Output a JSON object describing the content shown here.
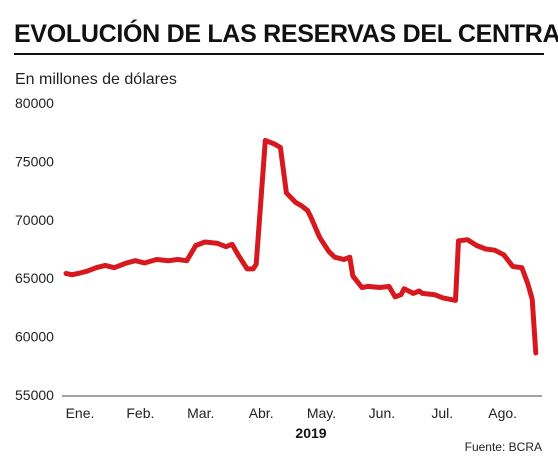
{
  "chart_data": {
    "type": "line",
    "title": "EVOLUCIÓN DE LAS RESERVAS DEL CENTRAL",
    "subtitle": "En millones de dólares",
    "xlabel": "2019",
    "ylabel": "",
    "source": "Fuente: BCRA",
    "ylim": [
      55000,
      80000
    ],
    "yticks": [
      "80000",
      "75000",
      "70000",
      "65000",
      "60000",
      "55000"
    ],
    "xlim": [
      0,
      7.85
    ],
    "x_categories": [
      "Ene.",
      "Feb.",
      "Mar.",
      "Abr.",
      "May.",
      "Jun.",
      "Jul.",
      "Ago."
    ],
    "grid": false,
    "legend": "none",
    "series": [
      {
        "color": "#d7191f",
        "x": [
          0.0,
          0.1,
          0.2,
          0.35,
          0.5,
          0.65,
          0.8,
          1.0,
          1.15,
          1.3,
          1.5,
          1.7,
          1.85,
          2.0,
          2.15,
          2.3,
          2.5,
          2.65,
          2.75,
          2.85,
          3.0,
          3.1,
          3.15,
          3.3,
          3.45,
          3.55,
          3.65,
          3.8,
          3.9,
          4.0,
          4.05,
          4.2,
          4.35,
          4.45,
          4.6,
          4.7,
          4.75,
          4.9,
          5.0,
          5.2,
          5.35,
          5.45,
          5.55,
          5.6,
          5.75,
          5.85,
          5.9,
          6.1,
          6.25,
          6.35,
          6.45,
          6.5,
          6.65,
          6.8,
          6.95,
          7.1,
          7.25,
          7.4,
          7.55,
          7.65,
          7.72,
          7.78
        ],
        "values": [
          65400,
          65300,
          65400,
          65600,
          65900,
          66100,
          65900,
          66300,
          66500,
          66300,
          66600,
          66500,
          66600,
          66500,
          67800,
          68100,
          68000,
          67700,
          67900,
          67000,
          65800,
          65800,
          66200,
          76800,
          76500,
          76200,
          72300,
          71500,
          71200,
          70800,
          70300,
          68500,
          67300,
          66800,
          66600,
          66800,
          65200,
          64200,
          64300,
          64200,
          64300,
          63400,
          63600,
          64100,
          63700,
          63900,
          63700,
          63600,
          63300,
          63200,
          63100,
          68200,
          68300,
          67800,
          67500,
          67400,
          67000,
          66000,
          65900,
          64500,
          63200,
          58600
        ]
      }
    ]
  }
}
